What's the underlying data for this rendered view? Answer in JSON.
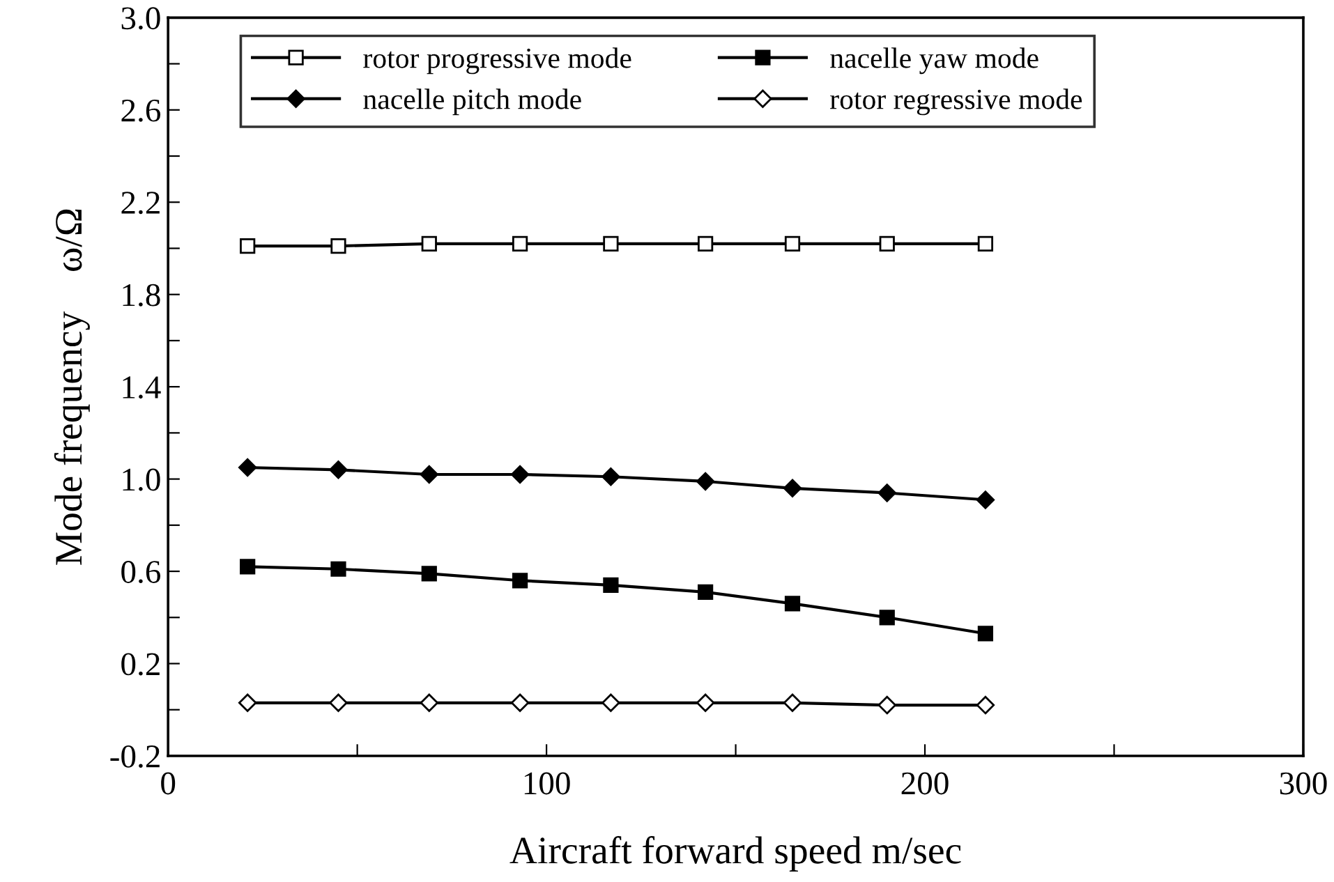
{
  "chart_data": {
    "type": "line",
    "xlabel": "Aircraft forward speed m/sec",
    "ylabel": "Mode frequency    ω/Ω",
    "x": [
      21,
      45,
      69,
      93,
      117,
      142,
      165,
      190,
      216
    ],
    "series": [
      {
        "name": "rotor progressive mode",
        "color": "#000000",
        "marker": "square",
        "values": [
          2.01,
          2.01,
          2.02,
          2.02,
          2.02,
          2.02,
          2.02,
          2.02,
          2.02
        ]
      },
      {
        "name": "nacelle yaw mode",
        "color": "#000000",
        "marker": "square",
        "values": [
          0.62,
          0.61,
          0.59,
          0.56,
          0.54,
          0.51,
          0.46,
          0.4,
          0.33
        ]
      },
      {
        "name": "nacelle pitch mode",
        "color": "#000000",
        "marker": "diamond",
        "values": [
          1.05,
          1.04,
          1.02,
          1.02,
          1.01,
          0.99,
          0.96,
          0.94,
          0.91
        ]
      },
      {
        "name": "rotor regressive mode",
        "color": "#000000",
        "marker": "diamond",
        "values": [
          0.03,
          0.03,
          0.03,
          0.03,
          0.03,
          0.03,
          0.03,
          0.02,
          0.02
        ]
      }
    ],
    "xlim": [
      0,
      300
    ],
    "xticks": [
      0,
      {
        "value": 50,
        "label": null
      },
      100,
      {
        "value": 150,
        "label": null
      },
      200,
      {
        "value": 250,
        "label": null
      },
      300
    ],
    "ylim": [
      -0.2,
      3.0
    ],
    "yticks": [
      {
        "value": -0.2,
        "label": "-0.2"
      },
      {
        "value": 0,
        "label": null
      },
      0.2,
      {
        "value": 0.4,
        "label": null
      },
      0.6,
      {
        "value": 0.8,
        "label": null
      },
      {
        "value": 1.0,
        "label": "1.0"
      },
      {
        "value": 1.2,
        "label": null
      },
      1.4,
      {
        "value": 1.6,
        "label": null
      },
      1.8,
      {
        "value": 2.0,
        "label": null
      },
      2.2,
      {
        "value": 2.4,
        "label": null
      },
      2.6,
      {
        "value": 2.8,
        "label": null
      },
      {
        "value": 3.0,
        "label": "3.0"
      }
    ],
    "grid": false,
    "legend": "top",
    "line_style": "solid"
  }
}
